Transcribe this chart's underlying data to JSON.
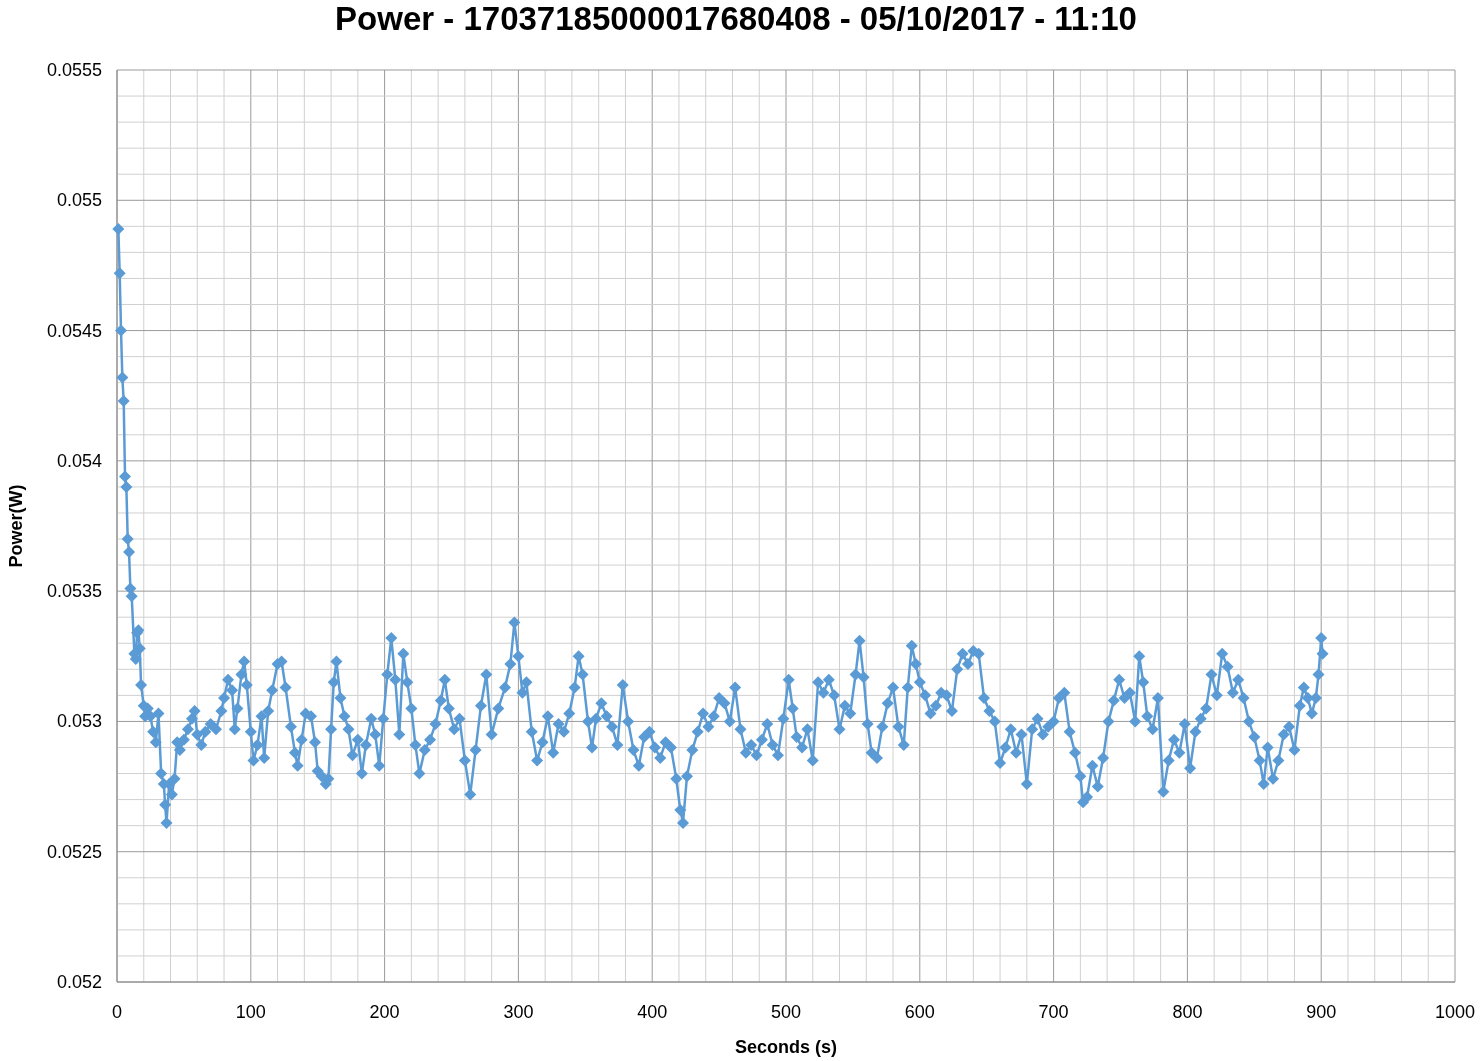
{
  "chart_data": {
    "type": "line",
    "title": "Power - 17037185000017680408 - 05/10/2017 - 11:10",
    "xlabel": "Seconds (s)",
    "ylabel": "Power(W)",
    "xlim": [
      0,
      1000
    ],
    "ylim": [
      0.052,
      0.0555
    ],
    "xticks": [
      0,
      {
        "value": 20,
        "label": null
      },
      {
        "value": 40,
        "label": null
      },
      {
        "value": 60,
        "label": null
      },
      {
        "value": 80,
        "label": null
      },
      100,
      {
        "value": 120,
        "label": null
      },
      {
        "value": 140,
        "label": null
      },
      {
        "value": 160,
        "label": null
      },
      {
        "value": 180,
        "label": null
      },
      200,
      {
        "value": 220,
        "label": null
      },
      {
        "value": 240,
        "label": null
      },
      {
        "value": 260,
        "label": null
      },
      {
        "value": 280,
        "label": null
      },
      300,
      {
        "value": 320,
        "label": null
      },
      {
        "value": 340,
        "label": null
      },
      {
        "value": 360,
        "label": null
      },
      {
        "value": 380,
        "label": null
      },
      400,
      {
        "value": 420,
        "label": null
      },
      {
        "value": 440,
        "label": null
      },
      {
        "value": 460,
        "label": null
      },
      {
        "value": 480,
        "label": null
      },
      500,
      {
        "value": 520,
        "label": null
      },
      {
        "value": 540,
        "label": null
      },
      {
        "value": 560,
        "label": null
      },
      {
        "value": 580,
        "label": null
      },
      600,
      {
        "value": 620,
        "label": null
      },
      {
        "value": 640,
        "label": null
      },
      {
        "value": 660,
        "label": null
      },
      {
        "value": 680,
        "label": null
      },
      700,
      {
        "value": 720,
        "label": null
      },
      {
        "value": 740,
        "label": null
      },
      {
        "value": 760,
        "label": null
      },
      {
        "value": 780,
        "label": null
      },
      800,
      {
        "value": 820,
        "label": null
      },
      {
        "value": 840,
        "label": null
      },
      {
        "value": 860,
        "label": null
      },
      {
        "value": 880,
        "label": null
      },
      900,
      {
        "value": 920,
        "label": null
      },
      {
        "value": 940,
        "label": null
      },
      {
        "value": 960,
        "label": null
      },
      {
        "value": 980,
        "label": null
      },
      1000
    ],
    "yticks": [
      0.052,
      {
        "value": 0.0521,
        "label": null
      },
      {
        "value": 0.0522,
        "label": null
      },
      {
        "value": 0.0523,
        "label": null
      },
      {
        "value": 0.0524,
        "label": null
      },
      0.0525,
      {
        "value": 0.0526,
        "label": null
      },
      {
        "value": 0.0527,
        "label": null
      },
      {
        "value": 0.0528,
        "label": null
      },
      {
        "value": 0.0529,
        "label": null
      },
      0.053,
      {
        "value": 0.0531,
        "label": null
      },
      {
        "value": 0.0532,
        "label": null
      },
      {
        "value": 0.0533,
        "label": null
      },
      {
        "value": 0.0534,
        "label": null
      },
      0.0535,
      {
        "value": 0.0536,
        "label": null
      },
      {
        "value": 0.0537,
        "label": null
      },
      {
        "value": 0.0538,
        "label": null
      },
      {
        "value": 0.0539,
        "label": null
      },
      0.054,
      {
        "value": 0.0541,
        "label": null
      },
      {
        "value": 0.0542,
        "label": null
      },
      {
        "value": 0.0543,
        "label": null
      },
      {
        "value": 0.0544,
        "label": null
      },
      0.0545,
      {
        "value": 0.0546,
        "label": null
      },
      {
        "value": 0.0547,
        "label": null
      },
      {
        "value": 0.0548,
        "label": null
      },
      {
        "value": 0.0549,
        "label": null
      },
      0.055,
      {
        "value": 0.0551,
        "label": null
      },
      {
        "value": 0.0552,
        "label": null
      },
      {
        "value": 0.0553,
        "label": null
      },
      {
        "value": 0.0554,
        "label": null
      },
      0.0555
    ],
    "grid": true,
    "marker": "diamond",
    "line_style": "solid",
    "series": [
      {
        "color": "#5b9bd5",
        "x": [
          1,
          2,
          3,
          4,
          5,
          6,
          7,
          8,
          9,
          10,
          11,
          13,
          14,
          15,
          16,
          17,
          18,
          20,
          21,
          23,
          25,
          27,
          29,
          31,
          33,
          35,
          36,
          37,
          39,
          41,
          43,
          45,
          47,
          50,
          53,
          56,
          58,
          60,
          63,
          66,
          70,
          74,
          78,
          80,
          83,
          86,
          88,
          90,
          93,
          95,
          97,
          100,
          102,
          105,
          108,
          110,
          113,
          116,
          120,
          123,
          126,
          130,
          133,
          135,
          138,
          141,
          145,
          148,
          150,
          153,
          156,
          158,
          160,
          162,
          164,
          167,
          170,
          173,
          176,
          180,
          183,
          186,
          190,
          193,
          196,
          199,
          202,
          205,
          208,
          211,
          214,
          217,
          220,
          223,
          226,
          230,
          234,
          238,
          242,
          245,
          248,
          252,
          256,
          260,
          264,
          268,
          272,
          276,
          280,
          285,
          290,
          294,
          297,
          300,
          303,
          306,
          310,
          314,
          318,
          322,
          326,
          330,
          334,
          338,
          342,
          345,
          348,
          352,
          355,
          358,
          362,
          366,
          370,
          374,
          378,
          382,
          386,
          390,
          394,
          398,
          402,
          406,
          410,
          414,
          418,
          421,
          423,
          426,
          430,
          434,
          438,
          442,
          446,
          450,
          454,
          458,
          462,
          466,
          470,
          474,
          478,
          482,
          486,
          490,
          494,
          498,
          502,
          505,
          508,
          512,
          516,
          520,
          524,
          528,
          532,
          536,
          540,
          544,
          548,
          552,
          555,
          558,
          561,
          564,
          568,
          572,
          576,
          580,
          584,
          588,
          591,
          594,
          597,
          600,
          604,
          608,
          612,
          616,
          620,
          624,
          628,
          632,
          636,
          640,
          644,
          648,
          652,
          656,
          660,
          664,
          668,
          672,
          676,
          680,
          684,
          688,
          692,
          696,
          700,
          704,
          708,
          712,
          716,
          720,
          722,
          725,
          729,
          733,
          737,
          741,
          745,
          749,
          753,
          757,
          761,
          764,
          767,
          770,
          774,
          778,
          782,
          786,
          790,
          794,
          798,
          802,
          806,
          810,
          814,
          818,
          822,
          826,
          830,
          834,
          838,
          842,
          846,
          850,
          854,
          857,
          860,
          864,
          868,
          872,
          876,
          880,
          884,
          887,
          890,
          893,
          896,
          898,
          900,
          901
        ],
        "values": [
          0.05489,
          0.05472,
          0.0545,
          0.05432,
          0.05423,
          0.05394,
          0.0539,
          0.0537,
          0.05365,
          0.05351,
          0.05348,
          0.05326,
          0.05324,
          0.05334,
          0.05335,
          0.05328,
          0.05314,
          0.05306,
          0.05302,
          0.05305,
          0.05302,
          0.05296,
          0.05292,
          0.05303,
          0.0528,
          0.05276,
          0.05268,
          0.05261,
          0.05276,
          0.05272,
          0.05278,
          0.05292,
          0.05289,
          0.05293,
          0.05297,
          0.05301,
          0.05304,
          0.05295,
          0.05291,
          0.05296,
          0.05299,
          0.05297,
          0.05304,
          0.05309,
          0.05316,
          0.05312,
          0.05297,
          0.05305,
          0.05318,
          0.05323,
          0.05314,
          0.05296,
          0.05285,
          0.05291,
          0.05302,
          0.05286,
          0.05304,
          0.05312,
          0.05322,
          0.05323,
          0.05313,
          0.05298,
          0.05288,
          0.05283,
          0.05293,
          0.05303,
          0.05302,
          0.05292,
          0.05281,
          0.05279,
          0.05276,
          0.05278,
          0.05297,
          0.05315,
          0.05323,
          0.05309,
          0.05302,
          0.05297,
          0.05287,
          0.05293,
          0.0528,
          0.05291,
          0.05301,
          0.05295,
          0.05283,
          0.05301,
          0.05318,
          0.05332,
          0.05316,
          0.05295,
          0.05326,
          0.05315,
          0.05305,
          0.05291,
          0.0528,
          0.05289,
          0.05293,
          0.05299,
          0.05308,
          0.05316,
          0.05305,
          0.05297,
          0.05301,
          0.05285,
          0.05272,
          0.05289,
          0.05306,
          0.05318,
          0.05295,
          0.05305,
          0.05313,
          0.05322,
          0.05338,
          0.05325,
          0.05311,
          0.05315,
          0.05296,
          0.05285,
          0.05292,
          0.05302,
          0.05288,
          0.05299,
          0.05296,
          0.05303,
          0.05313,
          0.05325,
          0.05318,
          0.053,
          0.0529,
          0.05301,
          0.05307,
          0.05302,
          0.05298,
          0.05291,
          0.05314,
          0.053,
          0.05289,
          0.05283,
          0.05294,
          0.05296,
          0.0529,
          0.05286,
          0.05292,
          0.0529,
          0.05278,
          0.05266,
          0.05261,
          0.05279,
          0.05289,
          0.05296,
          0.05303,
          0.05298,
          0.05302,
          0.05309,
          0.05307,
          0.053,
          0.05313,
          0.05297,
          0.05288,
          0.05291,
          0.05287,
          0.05293,
          0.05299,
          0.05291,
          0.05287,
          0.05301,
          0.05316,
          0.05305,
          0.05294,
          0.0529,
          0.05297,
          0.05285,
          0.05315,
          0.05311,
          0.05316,
          0.0531,
          0.05297,
          0.05306,
          0.05303,
          0.05318,
          0.05331,
          0.05317,
          0.05299,
          0.05288,
          0.05286,
          0.05298,
          0.05307,
          0.05313,
          0.05298,
          0.05291,
          0.05313,
          0.05329,
          0.05322,
          0.05315,
          0.0531,
          0.05303,
          0.05306,
          0.05311,
          0.0531,
          0.05304,
          0.0532,
          0.05326,
          0.05322,
          0.05327,
          0.05326,
          0.05309,
          0.05304,
          0.053,
          0.05284,
          0.0529,
          0.05297,
          0.05288,
          0.05295,
          0.05276,
          0.05297,
          0.05301,
          0.05295,
          0.05298,
          0.053,
          0.05309,
          0.05311,
          0.05296,
          0.05288,
          0.05279,
          0.05269,
          0.05271,
          0.05283,
          0.05275,
          0.05286,
          0.053,
          0.05308,
          0.05316,
          0.05309,
          0.05311,
          0.053,
          0.05325,
          0.05315,
          0.05302,
          0.05297,
          0.05309,
          0.05273,
          0.05285,
          0.05293,
          0.05288,
          0.05299,
          0.05282,
          0.05296,
          0.05301,
          0.05305,
          0.05318,
          0.0531,
          0.05326,
          0.05321,
          0.05311,
          0.05316,
          0.05309,
          0.053,
          0.05294,
          0.05285,
          0.05276,
          0.0529,
          0.05278,
          0.05285,
          0.05295,
          0.05298,
          0.05289,
          0.05306,
          0.05313,
          0.05309,
          0.05303,
          0.05309,
          0.05318,
          0.05332,
          0.05326
        ]
      }
    ]
  }
}
